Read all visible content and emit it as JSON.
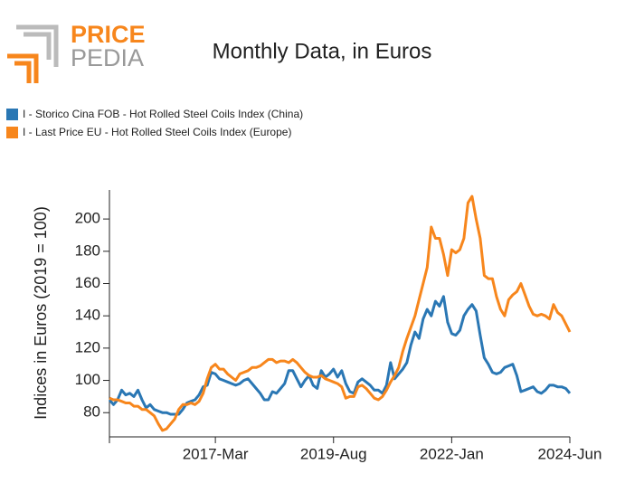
{
  "logo": {
    "line1": "PRICE",
    "line2": "PEDIA"
  },
  "chart_data": {
    "type": "line",
    "title": "Monthly Data, in Euros",
    "y_label": "Indices in Euros (2019 = 100)",
    "x": [
      "2015-Jan",
      "2015-Feb",
      "2015-Mar",
      "2015-Apr",
      "2015-May",
      "2015-Jun",
      "2015-Jul",
      "2015-Aug",
      "2015-Sep",
      "2015-Oct",
      "2015-Nov",
      "2015-Dec",
      "2016-Jan",
      "2016-Feb",
      "2016-Mar",
      "2016-Apr",
      "2016-May",
      "2016-Jun",
      "2016-Jul",
      "2016-Aug",
      "2016-Sep",
      "2016-Oct",
      "2016-Nov",
      "2016-Dec",
      "2017-Jan",
      "2017-Feb",
      "2017-Mar",
      "2017-Apr",
      "2017-May",
      "2017-Jun",
      "2017-Jul",
      "2017-Aug",
      "2017-Sep",
      "2017-Oct",
      "2017-Nov",
      "2017-Dec",
      "2018-Jan",
      "2018-Feb",
      "2018-Mar",
      "2018-Apr",
      "2018-May",
      "2018-Jun",
      "2018-Jul",
      "2018-Aug",
      "2018-Sep",
      "2018-Oct",
      "2018-Nov",
      "2018-Dec",
      "2019-Jan",
      "2019-Feb",
      "2019-Mar",
      "2019-Apr",
      "2019-May",
      "2019-Jun",
      "2019-Jul",
      "2019-Aug",
      "2019-Sep",
      "2019-Oct",
      "2019-Nov",
      "2019-Dec",
      "2020-Jan",
      "2020-Feb",
      "2020-Mar",
      "2020-Apr",
      "2020-May",
      "2020-Jun",
      "2020-Jul",
      "2020-Aug",
      "2020-Sep",
      "2020-Oct",
      "2020-Nov",
      "2020-Dec",
      "2021-Jan",
      "2021-Feb",
      "2021-Mar",
      "2021-Apr",
      "2021-May",
      "2021-Jun",
      "2021-Jul",
      "2021-Aug",
      "2021-Sep",
      "2021-Oct",
      "2021-Nov",
      "2021-Dec",
      "2022-Jan",
      "2022-Feb",
      "2022-Mar",
      "2022-Apr",
      "2022-May",
      "2022-Jun",
      "2022-Jul",
      "2022-Aug",
      "2022-Sep",
      "2022-Oct",
      "2022-Nov",
      "2022-Dec",
      "2023-Jan",
      "2023-Feb",
      "2023-Mar",
      "2023-Apr",
      "2023-May",
      "2023-Jun",
      "2023-Jul",
      "2023-Aug",
      "2023-Sep",
      "2023-Oct",
      "2023-Nov",
      "2023-Dec",
      "2024-Jan",
      "2024-Feb",
      "2024-Mar",
      "2024-Apr",
      "2024-May",
      "2024-Jun"
    ],
    "series": [
      {
        "name": "I - Storico Cina FOB - Hot Rolled Steel Coils Index (China)",
        "color": "#2a77b4",
        "values": [
          88,
          85,
          88,
          94,
          91,
          92,
          90,
          94,
          88,
          83,
          85,
          82,
          81,
          80,
          80,
          79,
          79,
          79,
          82,
          86,
          87,
          88,
          91,
          96,
          97,
          105,
          104,
          101,
          100,
          99,
          98,
          97,
          98,
          100,
          101,
          98,
          95,
          92,
          88,
          88,
          93,
          92,
          95,
          98,
          106,
          106,
          101,
          96,
          100,
          103,
          97,
          95,
          106,
          102,
          104,
          107,
          102,
          106,
          98,
          93,
          92,
          99,
          101,
          99,
          97,
          94,
          94,
          92,
          97,
          111,
          101,
          104,
          107,
          111,
          122,
          130,
          126,
          138,
          144,
          140,
          149,
          146,
          152,
          136,
          129,
          128,
          131,
          140,
          144,
          147,
          143,
          128,
          114,
          110,
          105,
          104,
          105,
          108,
          109,
          110,
          103,
          93,
          94,
          95,
          96,
          93,
          92,
          94,
          97,
          97,
          96,
          96,
          95,
          92
        ]
      },
      {
        "name": "I - Last Price EU - Hot Rolled Steel Coils Index (Europe)",
        "color": "#f7861c",
        "values": [
          89,
          88,
          88,
          87,
          86,
          86,
          84,
          84,
          82,
          82,
          80,
          78,
          73,
          69,
          70,
          73,
          76,
          82,
          85,
          85,
          86,
          85,
          87,
          92,
          101,
          108,
          110,
          107,
          107,
          104,
          102,
          100,
          104,
          105,
          106,
          108,
          108,
          109,
          111,
          113,
          113,
          111,
          112,
          112,
          111,
          113,
          111,
          108,
          105,
          103,
          102,
          102,
          103,
          101,
          100,
          99,
          98,
          96,
          89,
          90,
          90,
          96,
          97,
          95,
          92,
          89,
          88,
          90,
          94,
          99,
          103,
          108,
          118,
          126,
          133,
          140,
          150,
          160,
          170,
          195,
          188,
          188,
          178,
          165,
          181,
          179,
          181,
          188,
          210,
          214,
          200,
          188,
          165,
          163,
          163,
          152,
          144,
          140,
          150,
          153,
          155,
          160,
          153,
          146,
          141,
          140,
          141,
          140,
          138,
          147,
          142,
          140,
          135,
          130
        ]
      }
    ],
    "xlim": [
      "2015-Jan",
      "2024-Jun"
    ],
    "xticks": [
      "2017-Mar",
      "2019-Aug",
      "2022-Jan",
      "2024-Jun"
    ],
    "ylim": [
      65,
      218
    ],
    "yticks": [
      80,
      100,
      120,
      140,
      160,
      180,
      200
    ],
    "grid": false
  }
}
